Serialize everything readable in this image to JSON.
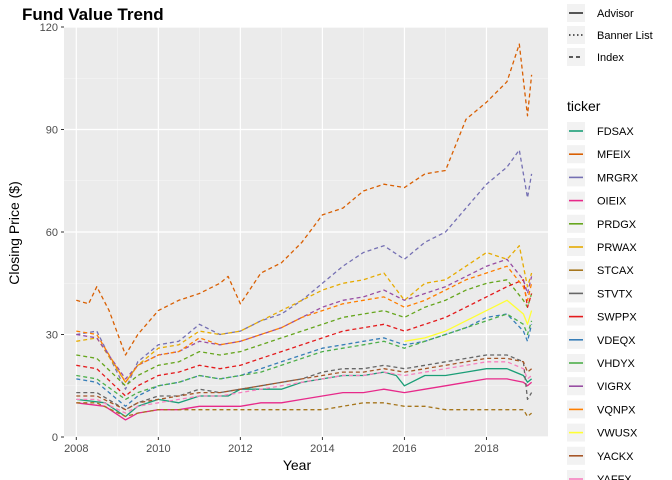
{
  "chart_data": {
    "type": "line",
    "title": "Fund Value Trend",
    "xlabel": "Year",
    "ylabel": "Closing Price ($)",
    "xlim": [
      2007.7,
      2019.5
    ],
    "ylim": [
      0,
      120
    ],
    "x_ticks": [
      2008,
      2010,
      2012,
      2014,
      2016,
      2018
    ],
    "y_ticks": [
      0,
      30,
      60,
      90,
      120
    ],
    "grid": true,
    "legend_position": "right",
    "linetype_legend": {
      "entries": [
        {
          "label": "Advisor",
          "dash": "solid"
        },
        {
          "label": "Banner List",
          "dash": "dotted"
        },
        {
          "label": "Index",
          "dash": "dashed"
        }
      ]
    },
    "color_legend": {
      "title": "ticker",
      "visible_entries": [
        "FDSAX",
        "MFEIX",
        "MRGRX",
        "OIEIX",
        "PRDGX",
        "PRWAX",
        "STCAX",
        "STVTX",
        "SWPPX",
        "VDEQX",
        "VHDYX",
        "VIGRX",
        "VQNPX",
        "VWUSX",
        "YACKX",
        "YAFFX"
      ]
    },
    "series": [
      {
        "name": "FDSAX",
        "color": "#1b9e77",
        "linetype": "solid",
        "x": [
          2008,
          2008.7,
          2009.2,
          2009.5,
          2010,
          2010.5,
          2011,
          2011.7,
          2012,
          2012.5,
          2013,
          2013.5,
          2014,
          2014.5,
          2015,
          2015.5,
          2015.8,
          2016,
          2016.5,
          2017,
          2017.5,
          2018,
          2018.5,
          2018.9,
          2019,
          2019.1
        ],
        "y": [
          11,
          10,
          6,
          9,
          11,
          10,
          12,
          12,
          14,
          14,
          14,
          16,
          17,
          18,
          18,
          19,
          18,
          15,
          18,
          18,
          19,
          20,
          20,
          18,
          16,
          17
        ]
      },
      {
        "name": "MFEIX",
        "color": "#d95f02",
        "linetype": "dashed",
        "x": [
          2008,
          2008.3,
          2008.5,
          2008.8,
          2009.2,
          2009.5,
          2010,
          2010.5,
          2011,
          2011.5,
          2011.7,
          2012,
          2012.5,
          2013,
          2013.5,
          2014,
          2014.5,
          2015,
          2015.5,
          2016,
          2016.5,
          2017,
          2017.5,
          2018,
          2018.5,
          2018.8,
          2019,
          2019.1
        ],
        "y": [
          40,
          39,
          44,
          37,
          24,
          30,
          37,
          40,
          42,
          45,
          47,
          39,
          48,
          51,
          57,
          65,
          67,
          72,
          74,
          73,
          77,
          78,
          93,
          98,
          104,
          115,
          94,
          106
        ]
      },
      {
        "name": "MRGRX",
        "color": "#7570b3",
        "linetype": "dashed",
        "x": [
          2008,
          2008.5,
          2009.2,
          2009.5,
          2010,
          2010.5,
          2011,
          2011.5,
          2012,
          2012.5,
          2013,
          2013.5,
          2014,
          2014.5,
          2015,
          2015.5,
          2016,
          2016.5,
          2017,
          2017.5,
          2018,
          2018.5,
          2018.8,
          2019,
          2019.1
        ],
        "y": [
          30,
          31,
          14,
          22,
          27,
          28,
          33,
          30,
          31,
          34,
          36,
          40,
          45,
          50,
          54,
          56,
          52,
          57,
          60,
          67,
          74,
          79,
          84,
          70,
          77
        ]
      },
      {
        "name": "OIEIX",
        "color": "#e7298a",
        "linetype": "solid",
        "x": [
          2008,
          2008.7,
          2009.2,
          2009.5,
          2010,
          2010.5,
          2011,
          2011.7,
          2012,
          2012.5,
          2013,
          2013.5,
          2014,
          2014.5,
          2015,
          2015.5,
          2016,
          2016.5,
          2017,
          2017.5,
          2018,
          2018.5,
          2018.9,
          2019,
          2019.1
        ],
        "y": [
          10,
          9,
          5,
          7,
          8,
          8,
          9,
          9,
          9,
          10,
          10,
          11,
          12,
          13,
          13,
          14,
          13,
          14,
          15,
          16,
          17,
          17,
          16,
          15,
          16
        ]
      },
      {
        "name": "PRDGX",
        "color": "#66a61e",
        "linetype": "dashed",
        "x": [
          2008,
          2008.5,
          2009.2,
          2009.5,
          2010,
          2010.5,
          2011,
          2011.5,
          2012,
          2012.5,
          2013,
          2013.5,
          2014,
          2014.5,
          2015,
          2015.5,
          2016,
          2016.5,
          2017,
          2017.5,
          2018,
          2018.5,
          2018.9,
          2019,
          2019.1
        ],
        "y": [
          24,
          23,
          15,
          18,
          21,
          22,
          25,
          24,
          25,
          27,
          29,
          31,
          33,
          35,
          36,
          37,
          35,
          38,
          40,
          43,
          45,
          46,
          40,
          38,
          42
        ]
      },
      {
        "name": "PRWAX",
        "color": "#e6ab02",
        "linetype": "dashed",
        "x": [
          2008,
          2008.5,
          2009.2,
          2009.5,
          2010,
          2010.5,
          2011,
          2011.5,
          2012,
          2012.5,
          2013,
          2013.5,
          2014,
          2014.5,
          2015,
          2015.5,
          2016,
          2016.5,
          2017,
          2017.5,
          2018,
          2018.5,
          2018.8,
          2019,
          2019.1
        ],
        "y": [
          28,
          29,
          16,
          21,
          26,
          27,
          31,
          30,
          31,
          34,
          37,
          40,
          43,
          45,
          46,
          48,
          40,
          45,
          46,
          50,
          54,
          52,
          56,
          44,
          48
        ]
      },
      {
        "name": "STCAX",
        "color": "#a6761d",
        "linetype": "dashed",
        "x": [
          2008,
          2008.5,
          2009.2,
          2009.5,
          2010,
          2010.5,
          2011,
          2011.5,
          2012,
          2012.5,
          2013,
          2013.5,
          2014,
          2014.5,
          2015,
          2015.5,
          2016,
          2016.5,
          2017,
          2017.5,
          2018,
          2018.5,
          2018.9,
          2019,
          2019.1
        ],
        "y": [
          10,
          10,
          6,
          7,
          8,
          8,
          8,
          8,
          8,
          8,
          8,
          8,
          8,
          9,
          10,
          10,
          9,
          9,
          8,
          8,
          8,
          8,
          8,
          6,
          7
        ]
      },
      {
        "name": "STVTX",
        "color": "#666666",
        "linetype": "dashed",
        "x": [
          2008,
          2008.5,
          2009.2,
          2009.5,
          2010,
          2010.5,
          2011,
          2011.5,
          2012,
          2012.5,
          2013,
          2013.5,
          2014,
          2014.5,
          2015,
          2015.5,
          2016,
          2016.5,
          2017,
          2017.5,
          2018,
          2018.5,
          2018.9,
          2019,
          2019.1
        ],
        "y": [
          13,
          13,
          8,
          10,
          12,
          12,
          14,
          13,
          14,
          15,
          16,
          17,
          19,
          20,
          20,
          21,
          20,
          21,
          22,
          23,
          24,
          24,
          22,
          11,
          13
        ]
      },
      {
        "name": "SWPPX",
        "color": "#e41a1c",
        "linetype": "dashed",
        "x": [
          2008,
          2008.5,
          2009.2,
          2009.5,
          2010,
          2010.5,
          2011,
          2011.5,
          2012,
          2012.5,
          2013,
          2013.5,
          2014,
          2014.5,
          2015,
          2015.5,
          2016,
          2016.5,
          2017,
          2017.5,
          2018,
          2018.5,
          2018.9,
          2019,
          2019.1
        ],
        "y": [
          21,
          20,
          12,
          15,
          18,
          19,
          21,
          20,
          21,
          23,
          25,
          27,
          29,
          31,
          32,
          33,
          31,
          33,
          35,
          38,
          41,
          44,
          46,
          38,
          42
        ]
      },
      {
        "name": "VDEQX",
        "color": "#377eb8",
        "linetype": "dashed",
        "x": [
          2008,
          2008.5,
          2009.2,
          2009.5,
          2010,
          2010.5,
          2011,
          2011.5,
          2012,
          2012.5,
          2013,
          2013.5,
          2014,
          2014.5,
          2015,
          2015.5,
          2016,
          2016.5,
          2017,
          2017.5,
          2018,
          2018.5,
          2018.9,
          2019,
          2019.1
        ],
        "y": [
          17,
          16,
          9,
          12,
          15,
          16,
          18,
          17,
          18,
          20,
          22,
          24,
          26,
          27,
          28,
          29,
          27,
          28,
          30,
          32,
          35,
          36,
          31,
          28,
          33
        ]
      },
      {
        "name": "VHDYX",
        "color": "#4daf4a",
        "linetype": "dashed",
        "x": [
          2008,
          2008.5,
          2009.2,
          2009.5,
          2010,
          2010.5,
          2011,
          2011.5,
          2012,
          2012.5,
          2013,
          2013.5,
          2014,
          2014.5,
          2015,
          2015.5,
          2016,
          2016.5,
          2017,
          2017.5,
          2018,
          2018.5,
          2018.9,
          2019,
          2019.1
        ],
        "y": [
          18,
          17,
          11,
          13,
          15,
          16,
          18,
          17,
          18,
          19,
          21,
          23,
          25,
          26,
          27,
          28,
          26,
          28,
          30,
          32,
          34,
          36,
          33,
          30,
          34
        ]
      },
      {
        "name": "VIGRX",
        "color": "#984ea3",
        "linetype": "dashed",
        "x": [
          2008,
          2008.5,
          2009.2,
          2009.5,
          2010,
          2010.5,
          2011,
          2011.5,
          2012,
          2012.5,
          2013,
          2013.5,
          2014,
          2014.5,
          2015,
          2015.5,
          2016,
          2016.5,
          2017,
          2017.5,
          2018,
          2018.5,
          2018.9,
          2019,
          2019.1
        ],
        "y": [
          30,
          29,
          17,
          21,
          24,
          25,
          28,
          27,
          28,
          30,
          32,
          35,
          38,
          40,
          41,
          43,
          40,
          42,
          44,
          47,
          50,
          52,
          46,
          42,
          47
        ]
      },
      {
        "name": "VQNPX",
        "color": "#ff7f00",
        "linetype": "dashed",
        "x": [
          2008,
          2008.5,
          2009.2,
          2009.5,
          2010,
          2010.5,
          2011,
          2011.5,
          2012,
          2012.5,
          2013,
          2013.5,
          2014,
          2014.5,
          2015,
          2015.5,
          2016,
          2016.5,
          2017,
          2017.5,
          2018,
          2018.5,
          2018.9,
          2019,
          2019.1
        ],
        "y": [
          31,
          30,
          16,
          21,
          24,
          25,
          29,
          27,
          28,
          30,
          32,
          35,
          37,
          39,
          40,
          41,
          38,
          40,
          43,
          46,
          48,
          50,
          44,
          40,
          45
        ]
      },
      {
        "name": "VWUSX",
        "color": "#ffff33",
        "linetype": "solid",
        "x": [
          2016,
          2016.5,
          2017,
          2017.5,
          2018,
          2018.5,
          2018.9,
          2019,
          2019.1
        ],
        "y": [
          28,
          29,
          31,
          34,
          37,
          40,
          36,
          33,
          37
        ]
      },
      {
        "name": "YACKX",
        "color": "#a65628",
        "linetype": "dashed",
        "x": [
          2008,
          2008.5,
          2009.2,
          2009.5,
          2010,
          2010.5,
          2011,
          2011.5,
          2012,
          2012.5,
          2013,
          2013.5,
          2014,
          2014.5,
          2015,
          2015.5,
          2016,
          2016.5,
          2017,
          2017.5,
          2018,
          2018.5,
          2018.9,
          2019,
          2019.1
        ],
        "y": [
          12,
          12,
          8,
          10,
          11,
          12,
          13,
          13,
          14,
          15,
          16,
          17,
          18,
          19,
          19,
          20,
          19,
          20,
          21,
          22,
          23,
          23,
          22,
          19,
          20
        ]
      },
      {
        "name": "YAFFX",
        "color": "#f781bf",
        "linetype": "dashed",
        "x": [
          2008,
          2008.5,
          2009.2,
          2009.5,
          2010,
          2010.5,
          2011,
          2011.5,
          2012,
          2012.5,
          2013,
          2013.5,
          2014,
          2014.5,
          2015,
          2015.5,
          2016,
          2016.5,
          2017,
          2017.5,
          2018,
          2018.5,
          2018.9,
          2019,
          2019.1
        ],
        "y": [
          11,
          11,
          7,
          9,
          10,
          11,
          12,
          12,
          13,
          14,
          15,
          16,
          17,
          18,
          18,
          19,
          18,
          19,
          20,
          21,
          22,
          22,
          20,
          17,
          18
        ]
      }
    ]
  }
}
